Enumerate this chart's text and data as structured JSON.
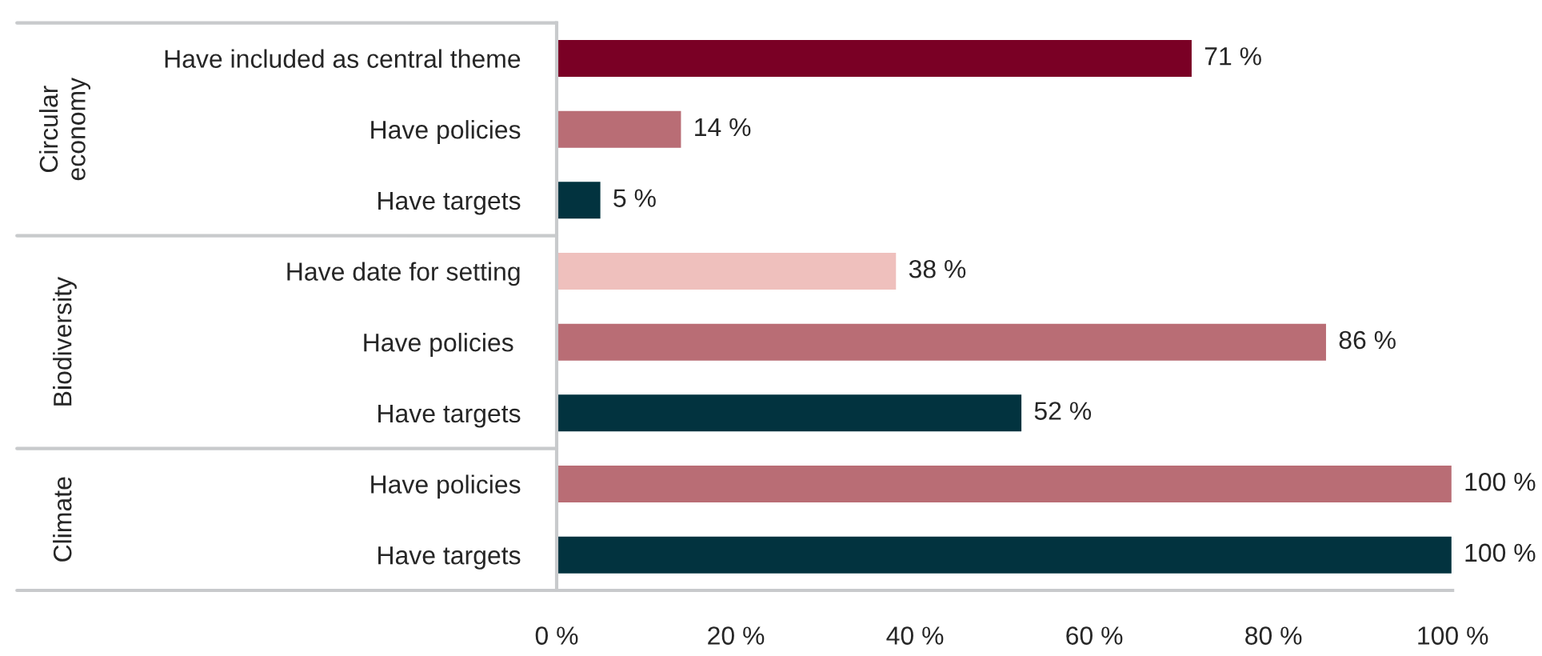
{
  "chart_data": {
    "type": "bar",
    "orientation": "horizontal",
    "categories": [
      "Have included as central theme",
      "Have policies",
      "Have targets",
      "Have date for setting",
      "Have policies ",
      "Have targets",
      "Have policies",
      "Have targets"
    ],
    "values": [
      71,
      14,
      5,
      38,
      86,
      52,
      100,
      100
    ],
    "colors": [
      "#7a0025",
      "#b96d75",
      "#02333f",
      "#efc0bd",
      "#b96d75",
      "#02333f",
      "#b96d75",
      "#02333f"
    ],
    "value_labels": [
      "71 %",
      "14 %",
      "5 %",
      "38 %",
      "86 %",
      "52 %",
      "100 %",
      "100 %"
    ],
    "xlim": [
      0,
      100
    ],
    "xticks": [
      {
        "value": 0,
        "label": "0 %"
      },
      {
        "value": 20,
        "label": "20 %"
      },
      {
        "value": 40,
        "label": "40 %"
      },
      {
        "value": 60,
        "label": "60 %"
      },
      {
        "value": 80,
        "label": "80 %"
      },
      {
        "value": 100,
        "label": "100 %"
      }
    ],
    "annotations": [
      "Circular\neconomy",
      "Biodiversity",
      "Climate"
    ],
    "grid": false,
    "legend": false
  }
}
